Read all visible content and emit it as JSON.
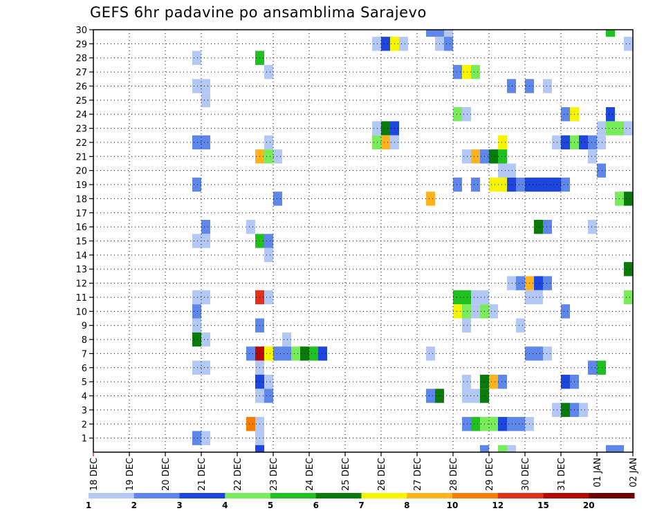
{
  "title": "GEFS 6hr padavine po ansamblima Sarajevo",
  "chart_data": {
    "type": "heatmap",
    "title": "GEFS 6hr padavine po ansamblima Sarajevo",
    "x_tick_labels": [
      "18 DEC",
      "19 DEC",
      "20 DEC",
      "21 DEC",
      "22 DEC",
      "23 DEC",
      "24 DEC",
      "25 DEC",
      "26 DEC",
      "27 DEC",
      "28 DEC",
      "29 DEC",
      "30 DEC",
      "31 DEC",
      "01 JAN",
      "02 JAN"
    ],
    "y_tick_labels": [
      "1",
      "2",
      "3",
      "4",
      "5",
      "6",
      "7",
      "8",
      "9",
      "10",
      "11",
      "12",
      "13",
      "14",
      "15",
      "16",
      "17",
      "18",
      "19",
      "20",
      "21",
      "22",
      "23",
      "24",
      "25",
      "26",
      "27",
      "28",
      "29",
      "30"
    ],
    "x_range_days": [
      0,
      15
    ],
    "y_range": [
      0,
      30
    ],
    "grid": true,
    "color_levels": [
      1,
      2,
      3,
      4,
      5,
      6,
      7,
      8,
      10,
      12,
      15,
      20
    ],
    "color_scale": [
      "#b4c8f5",
      "#5f87ea",
      "#1e46dc",
      "#7aeb5a",
      "#20c020",
      "#0a7a0a",
      "#f5f500",
      "#ffb41e",
      "#f57e00",
      "#e1321e",
      "#b40a0a",
      "#6e0000"
    ],
    "cells_note": "Each cell: [ensemble_member, start_day_since_18_DEC, end_day, colour_class_index (1=1-2 ... 12=>20)]",
    "cells": [
      [
        30,
        9.25,
        9.75,
        2
      ],
      [
        30,
        9.75,
        10.0,
        1
      ],
      [
        30,
        14.25,
        14.5,
        5
      ],
      [
        29,
        7.75,
        8.0,
        1
      ],
      [
        29,
        8.0,
        8.25,
        3
      ],
      [
        29,
        8.25,
        8.5,
        7
      ],
      [
        29,
        8.5,
        8.75,
        1
      ],
      [
        29,
        9.5,
        9.75,
        1
      ],
      [
        29,
        9.75,
        10.0,
        2
      ],
      [
        29,
        14.75,
        15.0,
        1
      ],
      [
        28,
        2.75,
        3.0,
        1
      ],
      [
        28,
        4.5,
        4.75,
        5
      ],
      [
        27,
        4.75,
        5.0,
        1
      ],
      [
        27,
        10.0,
        10.25,
        2
      ],
      [
        27,
        10.25,
        10.5,
        7
      ],
      [
        27,
        10.5,
        10.75,
        4
      ],
      [
        26,
        2.75,
        3.25,
        1
      ],
      [
        26,
        11.5,
        11.75,
        2
      ],
      [
        26,
        12.0,
        12.25,
        2
      ],
      [
        26,
        12.5,
        12.75,
        1
      ],
      [
        25,
        3.0,
        3.25,
        1
      ],
      [
        24,
        10.0,
        10.25,
        4
      ],
      [
        24,
        10.25,
        10.5,
        1
      ],
      [
        24,
        13.0,
        13.25,
        2
      ],
      [
        24,
        13.25,
        13.5,
        7
      ],
      [
        24,
        14.25,
        14.5,
        3
      ],
      [
        23,
        7.75,
        8.0,
        1
      ],
      [
        23,
        8.0,
        8.25,
        6
      ],
      [
        23,
        8.25,
        8.5,
        3
      ],
      [
        23,
        14.0,
        14.25,
        1
      ],
      [
        23,
        14.25,
        14.5,
        4
      ],
      [
        23,
        14.5,
        14.75,
        4
      ],
      [
        23,
        14.75,
        15.0,
        1
      ],
      [
        22,
        2.75,
        3.25,
        2
      ],
      [
        22,
        4.75,
        5.0,
        1
      ],
      [
        22,
        7.75,
        8.0,
        4
      ],
      [
        22,
        8.0,
        8.25,
        8
      ],
      [
        22,
        8.25,
        8.5,
        1
      ],
      [
        22,
        11.25,
        11.5,
        7
      ],
      [
        22,
        12.75,
        13.0,
        1
      ],
      [
        22,
        13.0,
        13.25,
        3
      ],
      [
        22,
        13.25,
        13.5,
        4
      ],
      [
        22,
        13.5,
        13.75,
        3
      ],
      [
        22,
        13.75,
        14.0,
        2
      ],
      [
        22,
        14.0,
        14.25,
        1
      ],
      [
        21,
        4.5,
        4.75,
        8
      ],
      [
        21,
        4.75,
        5.0,
        4
      ],
      [
        21,
        5.0,
        5.25,
        1
      ],
      [
        21,
        10.25,
        10.5,
        1
      ],
      [
        21,
        10.5,
        10.75,
        8
      ],
      [
        21,
        10.75,
        11.0,
        2
      ],
      [
        21,
        11.0,
        11.25,
        6
      ],
      [
        21,
        11.25,
        11.5,
        5
      ],
      [
        21,
        13.75,
        14.0,
        1
      ],
      [
        20,
        11.25,
        11.75,
        1
      ],
      [
        20,
        14.0,
        14.25,
        2
      ],
      [
        19,
        2.75,
        3.0,
        2
      ],
      [
        19,
        10.0,
        10.25,
        2
      ],
      [
        19,
        10.5,
        10.75,
        2
      ],
      [
        19,
        11.0,
        11.5,
        7
      ],
      [
        19,
        11.5,
        11.75,
        3
      ],
      [
        19,
        11.75,
        12.0,
        2
      ],
      [
        19,
        12.0,
        13.0,
        3
      ],
      [
        19,
        13.0,
        13.25,
        2
      ],
      [
        18,
        5.0,
        5.25,
        2
      ],
      [
        18,
        9.25,
        9.5,
        8
      ],
      [
        18,
        14.5,
        14.75,
        4
      ],
      [
        18,
        14.75,
        15.0,
        6
      ],
      [
        16,
        3.0,
        3.25,
        2
      ],
      [
        16,
        4.25,
        4.5,
        1
      ],
      [
        16,
        12.25,
        12.5,
        6
      ],
      [
        16,
        12.5,
        12.75,
        2
      ],
      [
        16,
        13.75,
        14.0,
        1
      ],
      [
        15,
        2.75,
        3.25,
        1
      ],
      [
        15,
        4.5,
        4.75,
        5
      ],
      [
        15,
        4.75,
        5.0,
        2
      ],
      [
        14,
        4.75,
        5.0,
        1
      ],
      [
        13,
        14.75,
        15.0,
        6
      ],
      [
        12,
        11.5,
        11.75,
        1
      ],
      [
        12,
        11.75,
        12.0,
        2
      ],
      [
        12,
        12.0,
        12.25,
        8
      ],
      [
        12,
        12.25,
        12.5,
        3
      ],
      [
        12,
        12.5,
        12.75,
        2
      ],
      [
        11,
        2.75,
        3.25,
        1
      ],
      [
        11,
        4.5,
        4.75,
        10
      ],
      [
        11,
        4.75,
        5.0,
        1
      ],
      [
        11,
        10.0,
        10.5,
        5
      ],
      [
        11,
        10.5,
        11.0,
        1
      ],
      [
        11,
        12.0,
        12.5,
        1
      ],
      [
        11,
        14.75,
        15.0,
        4
      ],
      [
        10,
        2.75,
        3.0,
        2
      ],
      [
        10,
        10.0,
        10.25,
        7
      ],
      [
        10,
        10.25,
        10.5,
        4
      ],
      [
        10,
        10.5,
        10.75,
        1
      ],
      [
        10,
        10.75,
        11.0,
        4
      ],
      [
        10,
        11.0,
        11.25,
        1
      ],
      [
        10,
        13.0,
        13.25,
        2
      ],
      [
        9,
        2.75,
        3.0,
        1
      ],
      [
        9,
        4.5,
        4.75,
        2
      ],
      [
        9,
        10.25,
        10.5,
        1
      ],
      [
        9,
        11.75,
        12.0,
        1
      ],
      [
        8,
        2.75,
        3.0,
        6
      ],
      [
        8,
        3.0,
        3.25,
        1
      ],
      [
        8,
        5.25,
        5.5,
        1
      ],
      [
        7,
        4.25,
        4.5,
        2
      ],
      [
        7,
        4.5,
        4.75,
        11
      ],
      [
        7,
        4.75,
        5.0,
        7
      ],
      [
        7,
        5.0,
        5.5,
        2
      ],
      [
        7,
        5.5,
        5.75,
        4
      ],
      [
        7,
        5.75,
        6.0,
        6
      ],
      [
        7,
        6.0,
        6.25,
        5
      ],
      [
        7,
        6.25,
        6.5,
        3
      ],
      [
        7,
        9.25,
        9.5,
        1
      ],
      [
        7,
        12.0,
        12.5,
        2
      ],
      [
        7,
        12.5,
        12.75,
        1
      ],
      [
        6,
        2.75,
        3.25,
        1
      ],
      [
        6,
        4.5,
        4.75,
        1
      ],
      [
        6,
        13.75,
        14.0,
        2
      ],
      [
        6,
        14.0,
        14.25,
        5
      ],
      [
        5,
        4.5,
        4.75,
        3
      ],
      [
        5,
        4.75,
        5.0,
        1
      ],
      [
        5,
        10.25,
        10.5,
        1
      ],
      [
        5,
        10.75,
        11.0,
        6
      ],
      [
        5,
        11.0,
        11.25,
        8
      ],
      [
        5,
        11.25,
        11.5,
        2
      ],
      [
        5,
        13.0,
        13.25,
        3
      ],
      [
        5,
        13.25,
        13.5,
        2
      ],
      [
        4,
        4.5,
        4.75,
        1
      ],
      [
        4,
        4.75,
        5.0,
        2
      ],
      [
        4,
        9.25,
        9.5,
        2
      ],
      [
        4,
        9.5,
        9.75,
        6
      ],
      [
        4,
        10.25,
        10.75,
        1
      ],
      [
        4,
        10.75,
        11.0,
        6
      ],
      [
        3,
        12.75,
        13.0,
        1
      ],
      [
        3,
        13.0,
        13.25,
        6
      ],
      [
        3,
        13.25,
        13.5,
        2
      ],
      [
        3,
        13.5,
        13.75,
        1
      ],
      [
        2,
        4.25,
        4.5,
        9
      ],
      [
        2,
        4.5,
        4.75,
        1
      ],
      [
        2,
        10.25,
        10.5,
        2
      ],
      [
        2,
        10.5,
        10.75,
        5
      ],
      [
        2,
        10.75,
        11.25,
        4
      ],
      [
        2,
        11.25,
        11.5,
        3
      ],
      [
        2,
        11.5,
        12.0,
        2
      ],
      [
        2,
        12.0,
        12.25,
        1
      ],
      [
        1,
        2.75,
        3.0,
        2
      ],
      [
        1,
        3.0,
        3.25,
        1
      ],
      [
        1,
        4.5,
        4.75,
        1
      ],
      [
        0,
        4.5,
        4.75,
        3
      ],
      [
        0,
        10.75,
        11.0,
        2
      ],
      [
        0,
        11.25,
        11.5,
        4
      ],
      [
        0,
        11.5,
        11.75,
        1
      ],
      [
        0,
        14.25,
        14.75,
        2
      ]
    ]
  }
}
